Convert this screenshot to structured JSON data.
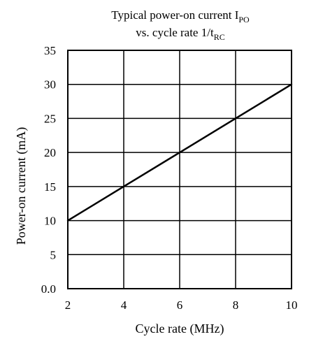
{
  "chart_data": {
    "type": "line",
    "title": {
      "line1_main": "Typical power-on current I",
      "line1_sub": "PO",
      "line2_main": "vs. cycle rate 1/t",
      "line2_sub": "RC"
    },
    "xlabel": "Cycle rate (MHz)",
    "ylabel": "Power-on current (mA)",
    "xlim": [
      2,
      10
    ],
    "ylim": [
      0,
      35
    ],
    "x_ticks": [
      {
        "value": 2,
        "label": "2"
      },
      {
        "value": 4,
        "label": "4"
      },
      {
        "value": 6,
        "label": "6"
      },
      {
        "value": 8,
        "label": "8"
      },
      {
        "value": 10,
        "label": "10"
      }
    ],
    "y_ticks": [
      {
        "value": 0,
        "label": "0.0"
      },
      {
        "value": 5,
        "label": "5"
      },
      {
        "value": 10,
        "label": "10"
      },
      {
        "value": 15,
        "label": "15"
      },
      {
        "value": 20,
        "label": "20"
      },
      {
        "value": 25,
        "label": "25"
      },
      {
        "value": 30,
        "label": "30"
      },
      {
        "value": 35,
        "label": "35"
      }
    ],
    "grid": true,
    "legend": "none",
    "series": [
      {
        "color": "#000000",
        "points": [
          {
            "x": 2,
            "y": 10
          },
          {
            "x": 4,
            "y": 15
          },
          {
            "x": 6,
            "y": 20
          },
          {
            "x": 8,
            "y": 25
          },
          {
            "x": 10,
            "y": 30
          }
        ]
      }
    ]
  }
}
